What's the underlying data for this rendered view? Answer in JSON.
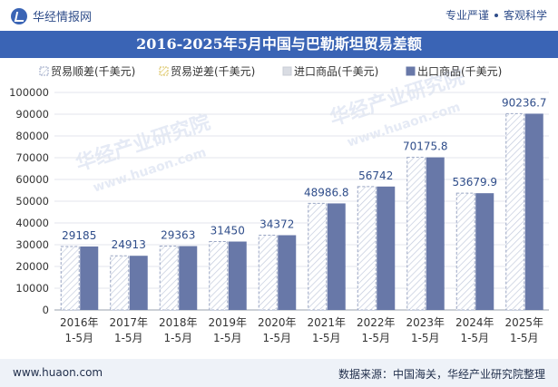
{
  "header": {
    "brand": "华经情报网",
    "slogan_left": "专业严谨",
    "slogan_right": "客观科学"
  },
  "title": "2016-2025年5月中国与巴勒斯坦贸易差额",
  "legend": [
    {
      "label": "贸易顺差(千美元)",
      "icon": "hatched-square"
    },
    {
      "label": "贸易逆差(千美元)",
      "icon": "hatched-square-yellow"
    },
    {
      "label": "进口商品(千美元)",
      "icon": "gray-square"
    },
    {
      "label": "出口商品(千美元)",
      "icon": "navy-square"
    }
  ],
  "watermarks": [
    "华经产业研究院",
    "www.huaon.com",
    "华经产业研究院",
    "www.huaon.com"
  ],
  "footer": {
    "website": "www.huaon.com",
    "source": "数据来源：中国海关，华经产业研究院整理"
  },
  "colors": {
    "title_bar": "#3a64b5",
    "export_bar": "#6878a8",
    "surplus_bar_stroke": "#9aa6c4",
    "label_color": "#2f4d8a"
  },
  "chart_data": {
    "type": "bar",
    "categories": [
      "2016年 1-5月",
      "2017年 1-5月",
      "2018年 1-5月",
      "2019年 1-5月",
      "2020年 1-5月",
      "2021年 1-5月",
      "2022年 1-5月",
      "2023年 1-5月",
      "2024年 1-5月",
      "2025年 1-5月"
    ],
    "series": [
      {
        "name": "贸易顺差(千美元)",
        "values": [
          29185,
          24913,
          29363,
          31450,
          34372,
          48986.8,
          56742,
          70175.8,
          53679.9,
          90236.7
        ]
      },
      {
        "name": "贸易逆差(千美元)",
        "values": [
          0,
          0,
          0,
          0,
          0,
          0,
          0,
          0,
          0,
          0
        ]
      },
      {
        "name": "进口商品(千美元)",
        "values": [
          0,
          0,
          0,
          0,
          0,
          0,
          0,
          0,
          0,
          0
        ]
      },
      {
        "name": "出口商品(千美元)",
        "values": [
          29185,
          24913,
          29363,
          31450,
          34372,
          48986.8,
          56742,
          70175.8,
          53679.9,
          90236.7
        ]
      }
    ],
    "data_labels": [
      "29185",
      "24913",
      "29363",
      "31450",
      "34372",
      "48986.8",
      "56742",
      "70175.8",
      "53679.9",
      "90236.7"
    ],
    "ylim": [
      0,
      100000
    ],
    "yticks": [
      0,
      10000,
      20000,
      30000,
      40000,
      50000,
      60000,
      70000,
      80000,
      90000,
      100000
    ],
    "xlabel": "",
    "ylabel": "",
    "grid": true,
    "legend_position": "top"
  }
}
